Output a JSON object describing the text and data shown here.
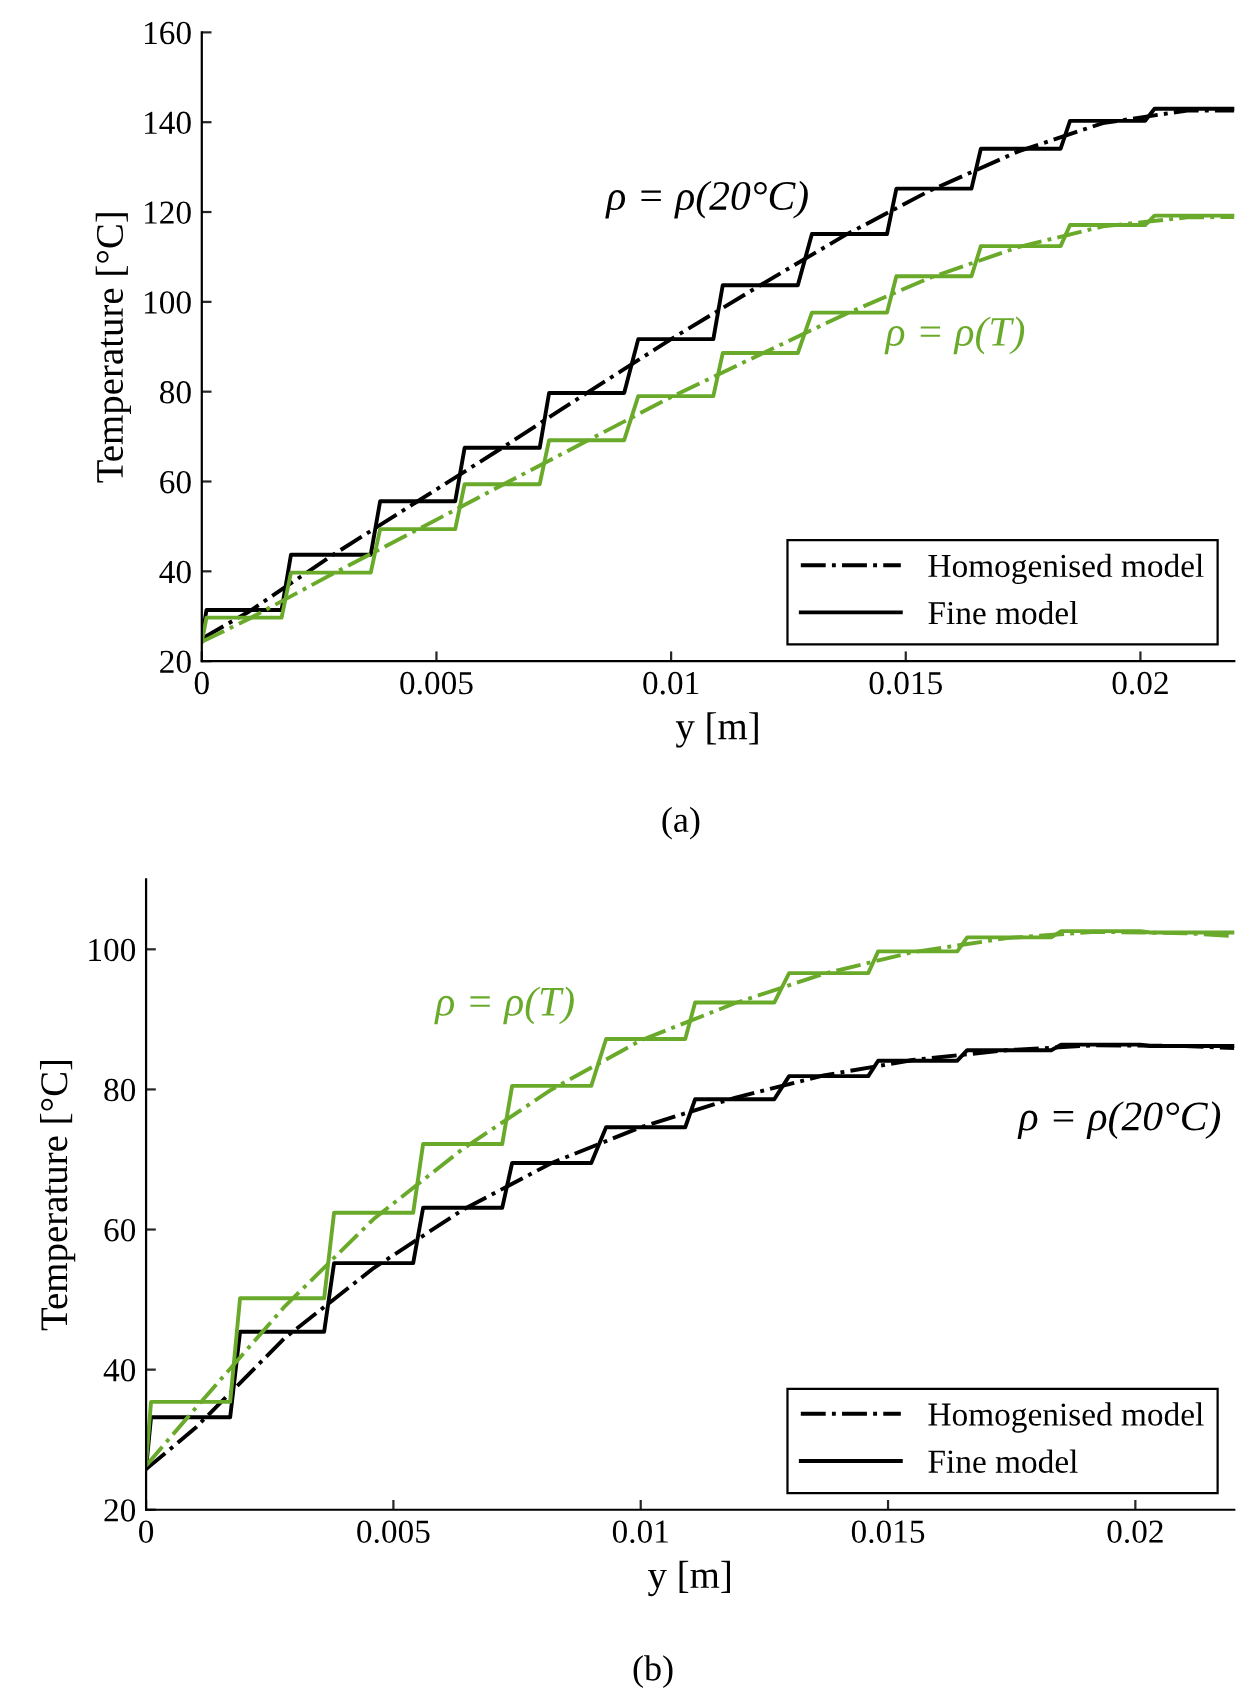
{
  "chart_data": [
    {
      "type": "line",
      "xlabel": "y [m]",
      "ylabel": "Temperature [°C]",
      "xlim": [
        0,
        0.022
      ],
      "ylim": [
        20,
        160
      ],
      "xticks": [
        0,
        0.005,
        0.01,
        0.015,
        0.02
      ],
      "yticks": [
        20,
        40,
        60,
        80,
        100,
        120,
        140,
        160
      ],
      "grid": false,
      "legend": "bottom right",
      "annotations": [
        "ρ = ρ(20°C)",
        "ρ = ρ(T)",
        "(a)"
      ],
      "series": [
        {
          "name": "Homogenised model",
          "color": "#000000",
          "line_style": "dashdot",
          "x": [
            0,
            0.001,
            0.0028,
            0.0046,
            0.0064,
            0.0082,
            0.01,
            0.0119,
            0.0137,
            0.0155,
            0.0174,
            0.0192,
            0.021,
            0.022
          ],
          "values": [
            25,
            31,
            43.7,
            55.6,
            67.5,
            79.7,
            91.7,
            103.7,
            114.8,
            124.7,
            133.5,
            139.8,
            142.6,
            142.6
          ]
        },
        {
          "name": "Fine model",
          "color": "#000000",
          "line_style": "solid",
          "x": [
            0,
            0.0001,
            0.0017,
            0.0019,
            0.0036,
            0.0038,
            0.0054,
            0.0056,
            0.0072,
            0.0074,
            0.009,
            0.0093,
            0.0109,
            0.0111,
            0.0127,
            0.013,
            0.0146,
            0.0148,
            0.0164,
            0.0166,
            0.0183,
            0.0185,
            0.0201,
            0.0203,
            0.022
          ],
          "values": [
            25,
            31.4,
            31.4,
            43.7,
            43.7,
            55.6,
            55.6,
            67.5,
            67.5,
            79.7,
            79.7,
            91.7,
            91.7,
            103.7,
            103.7,
            115.1,
            115.1,
            125.2,
            125.2,
            134.1,
            134.1,
            140.3,
            140.3,
            143,
            143
          ]
        },
        {
          "color": "#6aaa2a",
          "line_style": "dashdot",
          "x": [
            0,
            0.001,
            0.0028,
            0.0046,
            0.0064,
            0.0082,
            0.01,
            0.0119,
            0.0137,
            0.0155,
            0.0174,
            0.0192,
            0.021,
            0.022
          ],
          "values": [
            24.3,
            29.4,
            39.5,
            49.3,
            59.2,
            69,
            78.8,
            88.3,
            97.2,
            105.3,
            112.2,
            116.8,
            118.8,
            118.9
          ]
        },
        {
          "color": "#6aaa2a",
          "line_style": "solid",
          "x": [
            0,
            0.0001,
            0.0017,
            0.0019,
            0.0036,
            0.0038,
            0.0054,
            0.0056,
            0.0072,
            0.0074,
            0.009,
            0.0093,
            0.0109,
            0.0111,
            0.0127,
            0.013,
            0.0146,
            0.0148,
            0.0164,
            0.0166,
            0.0183,
            0.0185,
            0.0201,
            0.0203,
            0.022
          ],
          "values": [
            24.3,
            29.7,
            29.7,
            39.7,
            39.7,
            49.4,
            49.4,
            59.4,
            59.4,
            69.2,
            69.2,
            79,
            79,
            88.6,
            88.6,
            97.6,
            97.6,
            105.7,
            105.7,
            112.4,
            112.4,
            117.1,
            117.1,
            119.2,
            119.2
          ]
        }
      ]
    },
    {
      "type": "line",
      "xlabel": "y [m]",
      "ylabel": "Temperature [°C]",
      "xlim": [
        0,
        0.022
      ],
      "ylim": [
        20,
        110
      ],
      "xticks": [
        0,
        0.005,
        0.01,
        0.015,
        0.02
      ],
      "yticks": [
        20,
        40,
        60,
        80,
        100
      ],
      "grid": false,
      "legend": "bottom right",
      "annotations": [
        "ρ = ρ(T)",
        "ρ = ρ(20°C)",
        "(b)"
      ],
      "series": [
        {
          "name": "Homogenised model",
          "color": "#000000",
          "line_style": "dashdot",
          "x": [
            0,
            0.001,
            0.0028,
            0.0046,
            0.0064,
            0.0082,
            0.01,
            0.0119,
            0.0137,
            0.0155,
            0.0174,
            0.0192,
            0.021,
            0.022
          ],
          "values": [
            25.8,
            31.7,
            44.5,
            54.5,
            62.8,
            69.5,
            74.6,
            78.8,
            82,
            84.2,
            85.6,
            86.3,
            86.2,
            85.9
          ]
        },
        {
          "name": "Fine model",
          "color": "#000000",
          "line_style": "solid",
          "x": [
            0,
            0.0001,
            0.0017,
            0.0019,
            0.0036,
            0.0038,
            0.0054,
            0.0056,
            0.0072,
            0.0074,
            0.009,
            0.0093,
            0.0109,
            0.0111,
            0.0127,
            0.013,
            0.0146,
            0.0148,
            0.0164,
            0.0166,
            0.0183,
            0.0185,
            0.0201,
            0.0203,
            0.022
          ],
          "values": [
            25.9,
            33.2,
            33.2,
            45.4,
            45.4,
            55.2,
            55.2,
            63.1,
            63.1,
            69.5,
            69.5,
            74.6,
            74.6,
            78.6,
            78.6,
            81.9,
            81.9,
            84.1,
            84.1,
            85.6,
            85.6,
            86.4,
            86.4,
            86.2,
            86.2
          ]
        },
        {
          "color": "#6aaa2a",
          "line_style": "dashdot",
          "x": [
            0,
            0.001,
            0.0028,
            0.0046,
            0.0064,
            0.0082,
            0.01,
            0.0119,
            0.0137,
            0.0155,
            0.0174,
            0.0192,
            0.021,
            0.022
          ],
          "values": [
            26.3,
            34.5,
            49,
            61.5,
            71.5,
            80,
            87,
            92.3,
            96.5,
            99.6,
            101.6,
            102.5,
            102.3,
            101.9
          ]
        },
        {
          "color": "#6aaa2a",
          "line_style": "solid",
          "x": [
            0,
            0.0001,
            0.0017,
            0.0019,
            0.0036,
            0.0038,
            0.0054,
            0.0056,
            0.0072,
            0.0074,
            0.009,
            0.0093,
            0.0109,
            0.0111,
            0.0127,
            0.013,
            0.0146,
            0.0148,
            0.0164,
            0.0166,
            0.0183,
            0.0185,
            0.0201,
            0.0203,
            0.022
          ],
          "values": [
            26.6,
            35.4,
            35.4,
            50.2,
            50.2,
            62.4,
            62.4,
            72.2,
            72.2,
            80.5,
            80.5,
            87.2,
            87.2,
            92.4,
            92.4,
            96.6,
            96.6,
            99.7,
            99.7,
            101.7,
            101.7,
            102.6,
            102.6,
            102.4,
            102.4
          ]
        }
      ]
    }
  ]
}
